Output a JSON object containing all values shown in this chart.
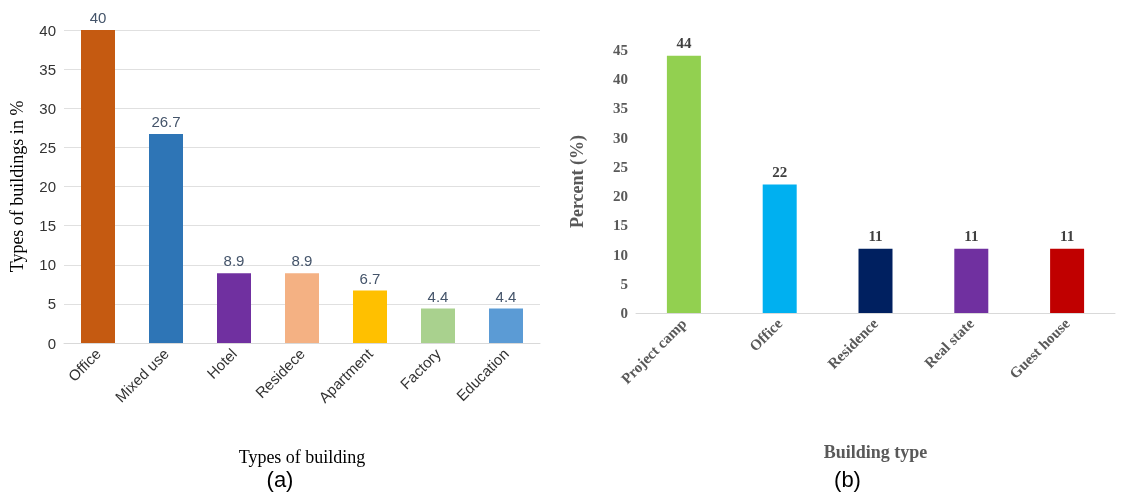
{
  "chart_data": [
    {
      "type": "bar",
      "xlabel": "Types of building",
      "ylabel": "Types of buildings in %",
      "categories": [
        "Office",
        "Mixed use",
        "Hotel",
        "Residece",
        "Apartment",
        "Factory",
        "Education"
      ],
      "values": [
        40,
        26.7,
        8.9,
        8.9,
        6.7,
        4.4,
        4.4
      ],
      "colors": [
        "#c55a11",
        "#2e75b6",
        "#7030a0",
        "#f4b183",
        "#ffc000",
        "#a9d18e",
        "#5b9bd5"
      ],
      "ylim": [
        0,
        40
      ],
      "yticks": [
        0,
        5,
        10,
        15,
        20,
        25,
        30,
        35,
        40
      ],
      "grid": "y",
      "data_labels": true,
      "annotations": [
        "(a)"
      ]
    },
    {
      "type": "bar",
      "xlabel": "Building type",
      "ylabel": "Percent (%)",
      "categories": [
        "Project camp",
        "Office",
        "Residence",
        "Real state",
        "Guest house"
      ],
      "values": [
        44,
        22,
        11,
        11,
        11
      ],
      "colors": [
        "#92d050",
        "#00b0f0",
        "#002060",
        "#7030a0",
        "#c00000"
      ],
      "ylim": [
        0,
        45
      ],
      "yticks": [
        0,
        5,
        10,
        15,
        20,
        25,
        30,
        35,
        40,
        45
      ],
      "grid": false,
      "data_labels": true,
      "annotations": [
        "(b)"
      ]
    }
  ]
}
